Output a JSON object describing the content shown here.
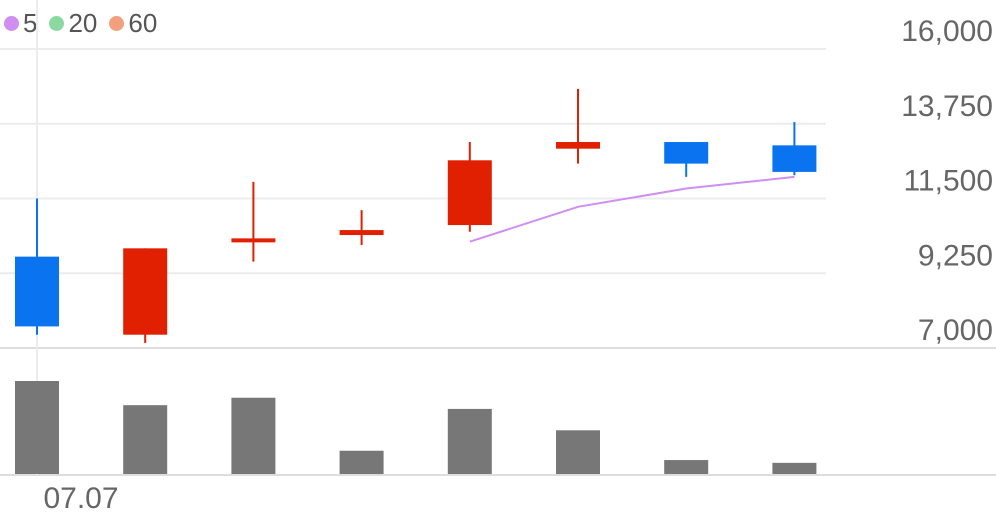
{
  "legend": [
    {
      "label": "5",
      "color": "#d08ef0"
    },
    {
      "label": "20",
      "color": "#8bd9a0"
    },
    {
      "label": "60",
      "color": "#f2a07e"
    }
  ],
  "chart_data": {
    "type": "candlestick",
    "y_ticks": [
      "16,000",
      "13,750",
      "11,500",
      "9,250",
      "7,000"
    ],
    "y_tick_values": [
      16000,
      13750,
      11500,
      9250,
      7000
    ],
    "ylim": [
      7000,
      16000
    ],
    "x_tick_labels": [
      {
        "index": 0,
        "label": "07.07"
      }
    ],
    "up_color": "#e02000",
    "down_color": "#0a74f0",
    "volume_color": "#777777",
    "candles": [
      {
        "open": 9750,
        "close": 7650,
        "high": 11500,
        "low": 7400,
        "volume": 100
      },
      {
        "open": 7400,
        "close": 10000,
        "high": 10000,
        "low": 7150,
        "volume": 74
      },
      {
        "open": 10250,
        "close": 10300,
        "high": 12000,
        "low": 9600,
        "volume": 82
      },
      {
        "open": 10400,
        "close": 10550,
        "high": 11150,
        "low": 10100,
        "volume": 25
      },
      {
        "open": 10700,
        "close": 12650,
        "high": 13200,
        "low": 10500,
        "volume": 70
      },
      {
        "open": 13000,
        "close": 13200,
        "high": 14800,
        "low": 12550,
        "volume": 47
      },
      {
        "open": 13200,
        "close": 12550,
        "high": 13200,
        "low": 12150,
        "volume": 15
      },
      {
        "open": 13100,
        "close": 12300,
        "high": 13800,
        "low": 12200,
        "volume": 12
      }
    ],
    "ma_series": [
      {
        "name": "5",
        "color": "#d08ef0",
        "values": [
          null,
          null,
          null,
          null,
          10200,
          11250,
          11800,
          12150
        ]
      }
    ]
  }
}
